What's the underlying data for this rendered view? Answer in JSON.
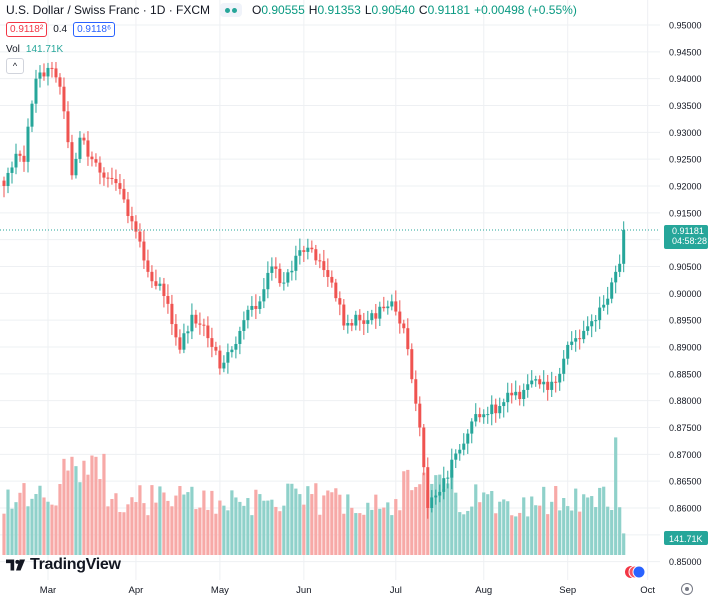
{
  "legend": {
    "symbol": "U.S. Dollar / Swiss Franc · 1D · FXCM",
    "open_label": "O",
    "open": "0.90555",
    "high_label": "H",
    "high": "0.91353",
    "low_label": "L",
    "low": "0.90540",
    "close_label": "C",
    "close": "0.91181",
    "change": "+0.00498 (+0.55%)",
    "bid": "0.9118²",
    "spread": "0.4",
    "ask": "0.9118⁶",
    "volume_label": "Vol",
    "volume": "141.71K",
    "collapse_icon": "^"
  },
  "logo": {
    "text": "TradingView"
  },
  "labels": {
    "last_price": "0.91181",
    "countdown": "04:58:28",
    "volume_tag": "141.71K"
  },
  "colors": {
    "up": "#26a69a",
    "down": "#ef5350",
    "up_volume": "#8fd1ca",
    "down_volume": "#f7a9a7",
    "grid": "#eef0f3",
    "axis_text": "#131722"
  },
  "chart_data": {
    "type": "candlestick",
    "symbol": "USD/CHF",
    "timeframe": "1D",
    "y_ticks": [
      "0.95000",
      "0.94500",
      "0.94000",
      "0.93500",
      "0.93000",
      "0.92500",
      "0.92000",
      "0.91500",
      "0.91000",
      "0.90500",
      "0.90000",
      "0.89500",
      "0.89000",
      "0.88500",
      "0.88000",
      "0.87500",
      "0.87000",
      "0.86500",
      "0.86000",
      "0.85500",
      "0.85000"
    ],
    "x_ticks": [
      "Mar",
      "Apr",
      "May",
      "Jun",
      "Jul",
      "Aug",
      "Sep",
      "Oct"
    ],
    "ylim": [
      0.848,
      0.952
    ],
    "anchors": [
      [
        0,
        0.92
      ],
      [
        3,
        0.926
      ],
      [
        5,
        0.9245
      ],
      [
        8,
        0.94
      ],
      [
        11,
        0.942
      ],
      [
        14,
        0.9385
      ],
      [
        17,
        0.922
      ],
      [
        19,
        0.929
      ],
      [
        22,
        0.925
      ],
      [
        26,
        0.9215
      ],
      [
        30,
        0.9175
      ],
      [
        33,
        0.9115
      ],
      [
        36,
        0.904
      ],
      [
        40,
        0.8995
      ],
      [
        44,
        0.8895
      ],
      [
        47,
        0.896
      ],
      [
        50,
        0.894
      ],
      [
        54,
        0.886
      ],
      [
        57,
        0.8895
      ],
      [
        60,
        0.895
      ],
      [
        64,
        0.8985
      ],
      [
        67,
        0.905
      ],
      [
        70,
        0.902
      ],
      [
        73,
        0.907
      ],
      [
        76,
        0.9085
      ],
      [
        79,
        0.906
      ],
      [
        82,
        0.902
      ],
      [
        85,
        0.894
      ],
      [
        88,
        0.896
      ],
      [
        91,
        0.895
      ],
      [
        94,
        0.8975
      ],
      [
        97,
        0.8985
      ],
      [
        100,
        0.8935
      ],
      [
        102,
        0.884
      ],
      [
        104,
        0.875
      ],
      [
        106,
        0.86
      ],
      [
        109,
        0.863
      ],
      [
        112,
        0.869
      ],
      [
        115,
        0.872
      ],
      [
        118,
        0.8775
      ],
      [
        121,
        0.8775
      ],
      [
        124,
        0.879
      ],
      [
        127,
        0.881
      ],
      [
        130,
        0.882
      ],
      [
        133,
        0.884
      ],
      [
        136,
        0.882
      ],
      [
        139,
        0.885
      ],
      [
        142,
        0.891
      ],
      [
        145,
        0.893
      ],
      [
        148,
        0.895
      ],
      [
        151,
        0.899
      ],
      [
        153,
        0.904
      ],
      [
        154,
        0.9055
      ],
      [
        155,
        0.91181
      ]
    ],
    "volume_max": 300000,
    "last_price": 0.91181
  }
}
